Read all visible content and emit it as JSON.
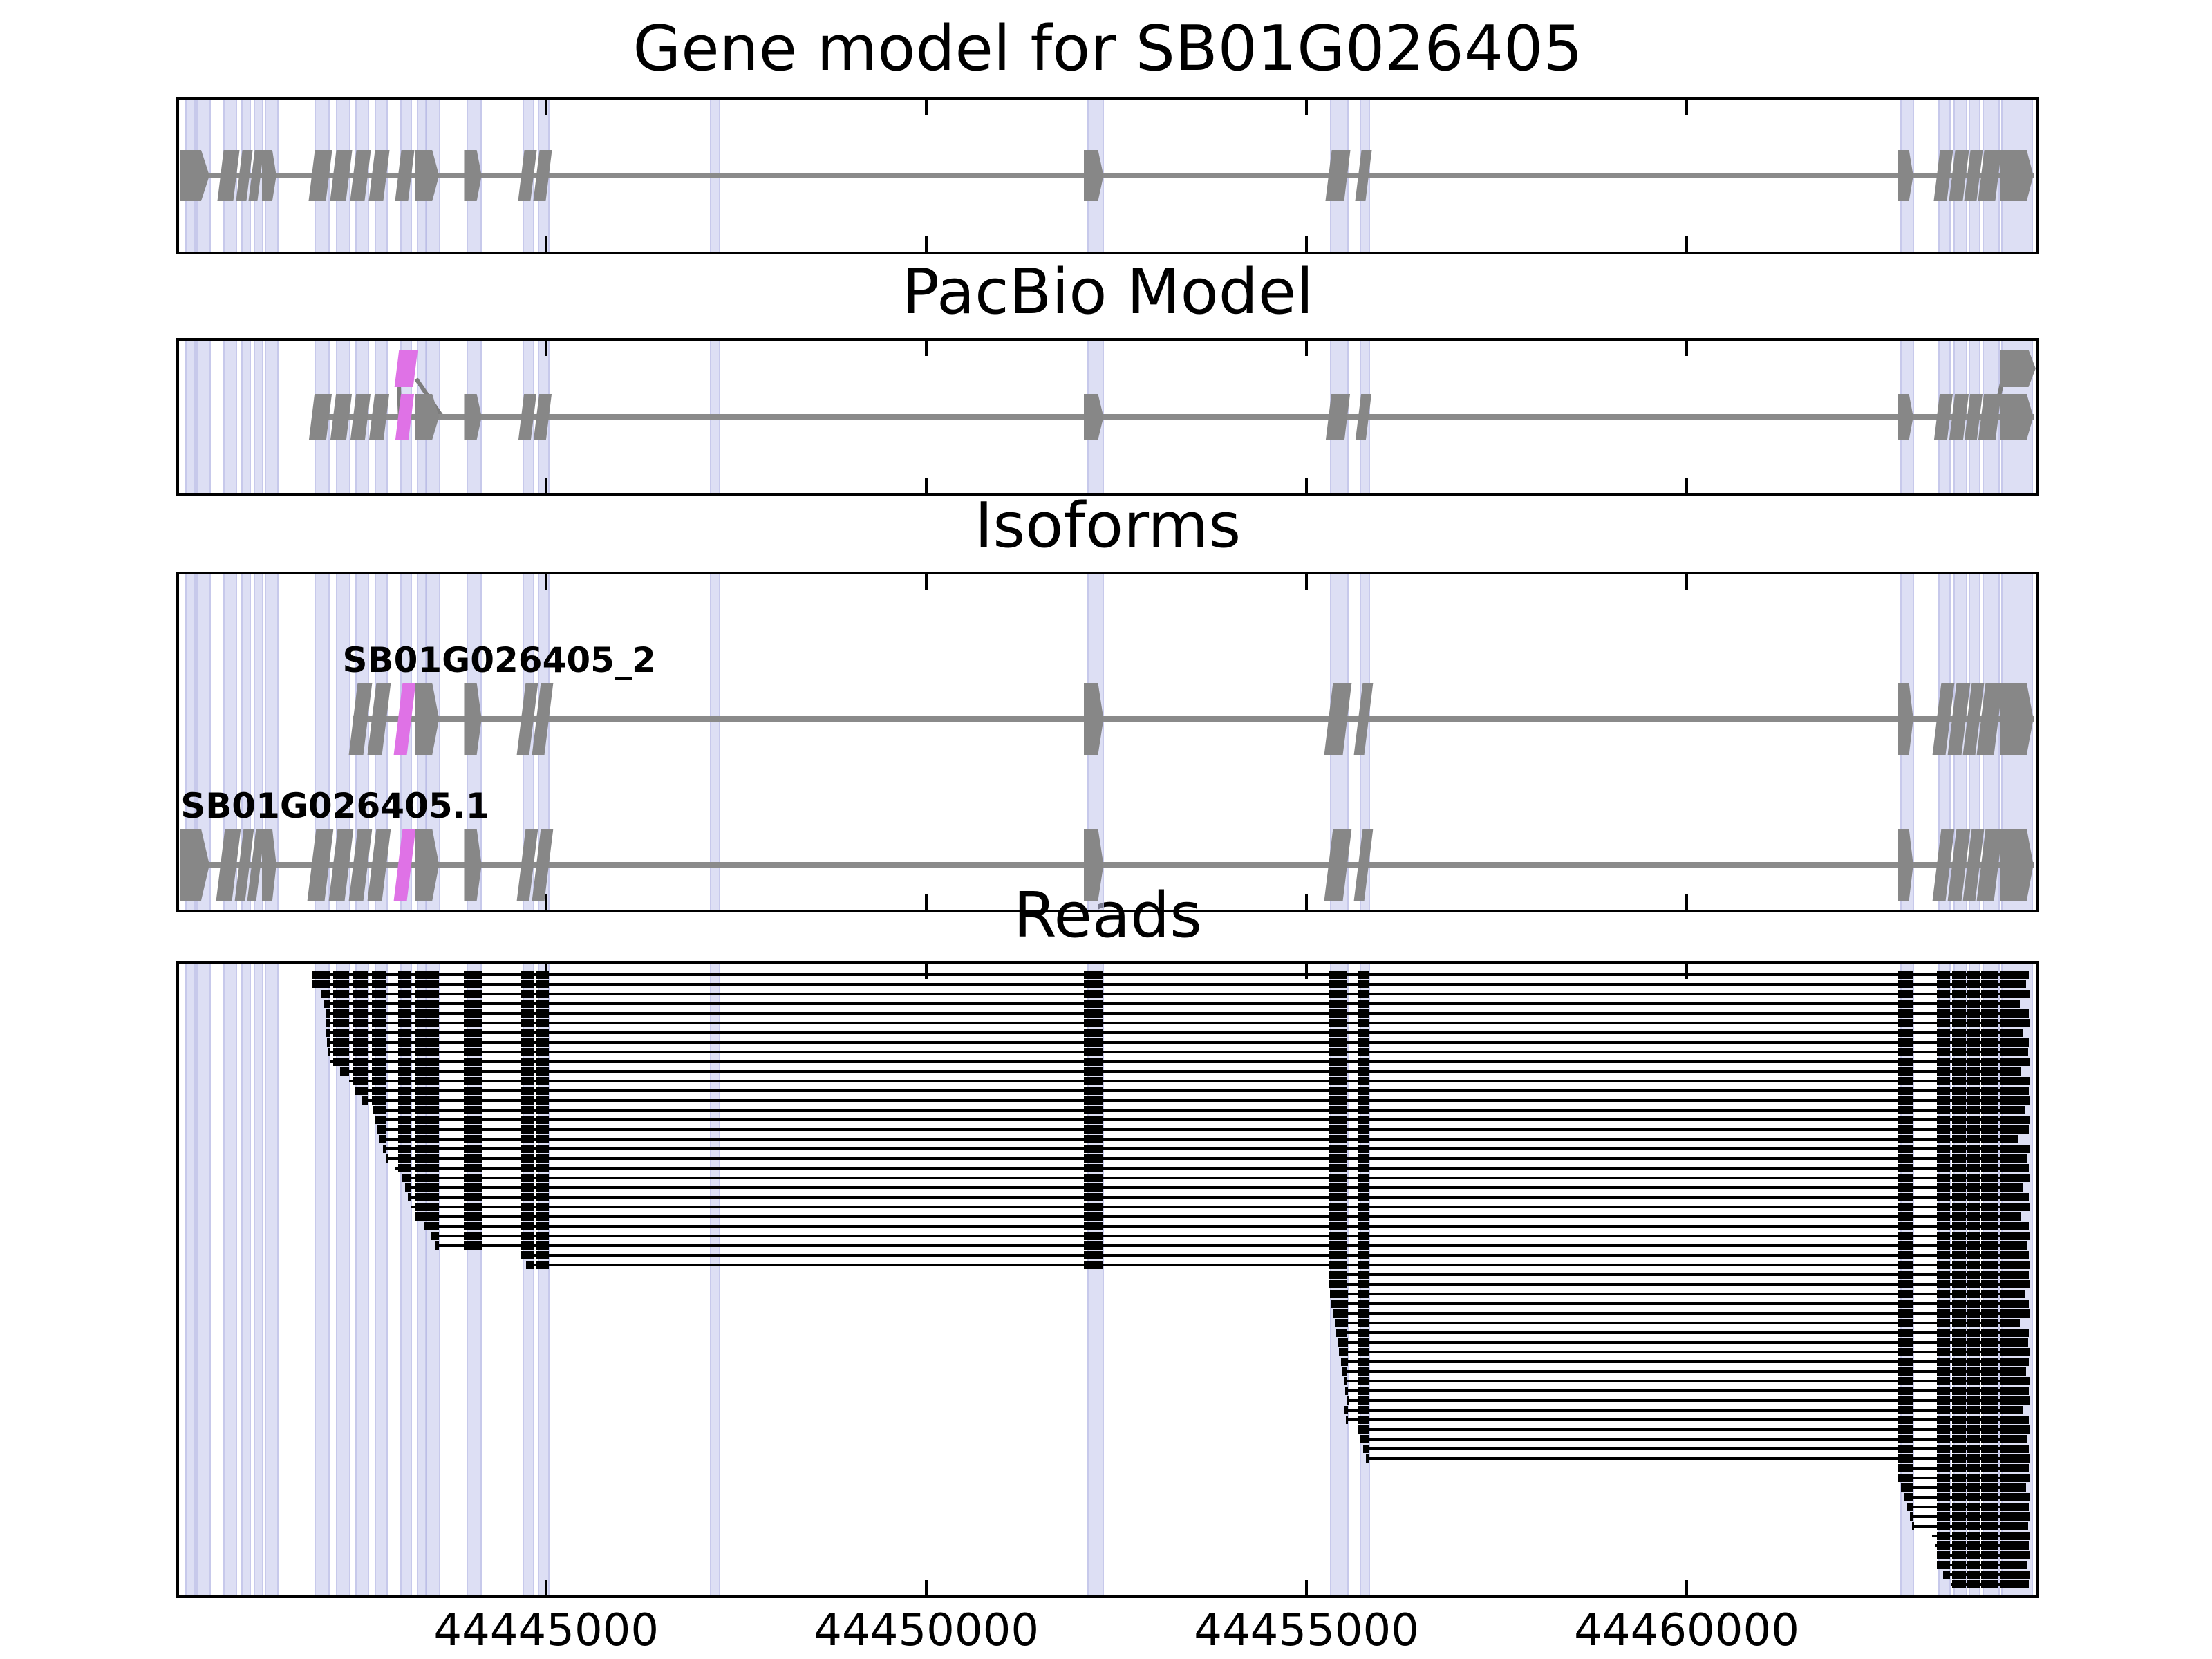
{
  "chart_data": {
    "type": "genome-browser",
    "gene_id": "SB01G026405",
    "xlim": [
      44440170,
      44464600
    ],
    "x_ticks": [
      {
        "value": 44445000,
        "label": "44445000"
      },
      {
        "value": 44450000,
        "label": "44450000"
      },
      {
        "value": 44455000,
        "label": "44455000"
      },
      {
        "value": 44460000,
        "label": "44460000"
      }
    ],
    "style_legend": {
      "": "plain exon",
      "a": "arrow exon",
      "A": "big terminal arrow exon",
      "h": "highlighted (magenta) exon"
    },
    "colors": {
      "exon_gray": "#878787",
      "intron_line": "#8a8a8a",
      "highlight_magenta": "#DF72E6",
      "read_black": "#000000",
      "stripe_fill": "rgba(199,202,236,0.60)",
      "stripe_edge": "rgba(177,180,226,0.50)",
      "panel_border": "#000000",
      "background": "#ffffff"
    },
    "panels": [
      {
        "id": "panel-gene-model",
        "title": "Gene model for SB01G026405",
        "track": "gene_model"
      },
      {
        "id": "panel-pacbio",
        "title": "PacBio Model",
        "track": "pacbio"
      },
      {
        "id": "panel-isoforms",
        "title": "Isoforms",
        "track": "isoforms"
      },
      {
        "id": "panel-reads",
        "title": "Reads",
        "track": "reads"
      }
    ],
    "stripes": [
      [
        44440250,
        44440350
      ],
      [
        44440400,
        44440550
      ],
      [
        44440750,
        44440900
      ],
      [
        44440990,
        44441080
      ],
      [
        44441150,
        44441240
      ],
      [
        44441300,
        44441440
      ],
      [
        44441950,
        44442120
      ],
      [
        44442230,
        44442390
      ],
      [
        44442490,
        44442630
      ],
      [
        44442740,
        44442880
      ],
      [
        44443080,
        44443200
      ],
      [
        44443300,
        44443390
      ],
      [
        44443420,
        44443570
      ],
      [
        44443950,
        44444120
      ],
      [
        44444690,
        44444810
      ],
      [
        44444890,
        44445010
      ],
      [
        44447150,
        44447250
      ],
      [
        44452120,
        44452300
      ],
      [
        44455310,
        44455520
      ],
      [
        44455700,
        44455800
      ],
      [
        44462810,
        44462950
      ],
      [
        44463310,
        44463440
      ],
      [
        44463510,
        44463650
      ],
      [
        44463710,
        44463830
      ],
      [
        44463890,
        44464080
      ],
      [
        44464140,
        44464520
      ]
    ],
    "tracks": {
      "gene_model": {
        "line": [
          44440180,
          44464560
        ],
        "exons": [
          [
            44440180,
            44440570,
            "a"
          ],
          [
            44440720,
            44440930,
            ""
          ],
          [
            44440965,
            44441100,
            ""
          ],
          [
            44441125,
            44441245,
            ""
          ],
          [
            44441260,
            44441450,
            "a"
          ],
          [
            44441920,
            44442150,
            ""
          ],
          [
            44442200,
            44442410,
            ""
          ],
          [
            44442460,
            44442650,
            ""
          ],
          [
            44442710,
            44442900,
            ""
          ],
          [
            44443050,
            44443220,
            ""
          ],
          [
            44443270,
            44443590,
            "a"
          ],
          [
            44443920,
            44444150,
            "a"
          ],
          [
            44444670,
            44444830,
            ""
          ],
          [
            44444870,
            44445030,
            ""
          ],
          [
            44452070,
            44452330,
            "a"
          ],
          [
            44455290,
            44455540,
            ""
          ],
          [
            44455680,
            44455820,
            ""
          ],
          [
            44462780,
            44462980,
            "a"
          ],
          [
            44463290,
            44463460,
            ""
          ],
          [
            44463490,
            44463670,
            ""
          ],
          [
            44463690,
            44463850,
            ""
          ],
          [
            44463870,
            44464100,
            ""
          ],
          [
            44464120,
            44464560,
            "A"
          ]
        ]
      },
      "pacbio": {
        "line": [
          44441920,
          44464560
        ],
        "exons": [
          [
            44441920,
            44442150,
            ""
          ],
          [
            44442200,
            44442410,
            ""
          ],
          [
            44442460,
            44442650,
            ""
          ],
          [
            44442710,
            44442900,
            ""
          ],
          [
            44443050,
            44443220,
            "h"
          ],
          [
            44443270,
            44443590,
            "a"
          ],
          [
            44443920,
            44444150,
            "a"
          ],
          [
            44444670,
            44444830,
            ""
          ],
          [
            44444870,
            44445030,
            ""
          ],
          [
            44452070,
            44452330,
            "a"
          ],
          [
            44455290,
            44455540,
            ""
          ],
          [
            44455680,
            44455820,
            ""
          ],
          [
            44462780,
            44462980,
            "a"
          ],
          [
            44463290,
            44463460,
            ""
          ],
          [
            44463490,
            44463670,
            ""
          ],
          [
            44463690,
            44463850,
            ""
          ],
          [
            44463870,
            44464100,
            ""
          ],
          [
            44464120,
            44464560,
            "A"
          ]
        ],
        "elevated": [
          {
            "s": 44443035,
            "e": 44443280,
            "style": "h"
          },
          {
            "s": 44464120,
            "e": 44464590,
            "style": "A"
          }
        ],
        "connectors": [
          [
            44443060,
            -43,
            44443075,
            -2
          ],
          [
            44443290,
            -55,
            44443620,
            -2
          ],
          [
            44464050,
            -2,
            44464140,
            -48
          ]
        ]
      }
    },
    "isoforms": [
      {
        "label": "SB01G026405_2",
        "label_x": 44442320,
        "line": [
          44442460,
          44464560
        ],
        "exons": [
          [
            44442460,
            44442650,
            ""
          ],
          [
            44442710,
            44442900,
            ""
          ],
          [
            44443050,
            44443220,
            "h"
          ],
          [
            44443270,
            44443590,
            "a"
          ],
          [
            44443920,
            44444150,
            "a"
          ],
          [
            44444670,
            44444830,
            ""
          ],
          [
            44444870,
            44445030,
            ""
          ],
          [
            44452070,
            44452330,
            "a"
          ],
          [
            44455290,
            44455540,
            ""
          ],
          [
            44455680,
            44455820,
            ""
          ],
          [
            44462780,
            44462980,
            "a"
          ],
          [
            44463290,
            44463460,
            ""
          ],
          [
            44463490,
            44463670,
            ""
          ],
          [
            44463690,
            44463850,
            ""
          ],
          [
            44463870,
            44464100,
            ""
          ],
          [
            44464120,
            44464560,
            "A"
          ]
        ]
      },
      {
        "label": "SB01G026405.1",
        "label_x": 44440190,
        "line": [
          44440180,
          44464560
        ],
        "exons": [
          [
            44440180,
            44440570,
            "a"
          ],
          [
            44440720,
            44440930,
            ""
          ],
          [
            44440965,
            44441100,
            ""
          ],
          [
            44441125,
            44441245,
            ""
          ],
          [
            44441260,
            44441450,
            "a"
          ],
          [
            44441920,
            44442150,
            ""
          ],
          [
            44442200,
            44442410,
            ""
          ],
          [
            44442460,
            44442650,
            ""
          ],
          [
            44442710,
            44442900,
            ""
          ],
          [
            44443050,
            44443220,
            "h"
          ],
          [
            44443270,
            44443590,
            "a"
          ],
          [
            44443920,
            44444150,
            "a"
          ],
          [
            44444670,
            44444830,
            ""
          ],
          [
            44444870,
            44445030,
            ""
          ],
          [
            44452070,
            44452330,
            "a"
          ],
          [
            44455290,
            44455540,
            ""
          ],
          [
            44455680,
            44455820,
            ""
          ],
          [
            44462780,
            44462980,
            "a"
          ],
          [
            44463290,
            44463460,
            ""
          ],
          [
            44463490,
            44463670,
            ""
          ],
          [
            44463690,
            44463850,
            ""
          ],
          [
            44463870,
            44464100,
            ""
          ],
          [
            44464120,
            44464560,
            "A"
          ]
        ]
      }
    ],
    "reads": {
      "exon_template": [
        [
          44441920,
          44442150
        ],
        [
          44442200,
          44442410
        ],
        [
          44442460,
          44442650
        ],
        [
          44442710,
          44442900
        ],
        [
          44443050,
          44443220
        ],
        [
          44443270,
          44443590
        ],
        [
          44443920,
          44444150
        ],
        [
          44444670,
          44444830
        ],
        [
          44444870,
          44445030
        ],
        [
          44452070,
          44452330
        ],
        [
          44455290,
          44455540
        ],
        [
          44455680,
          44455820
        ],
        [
          44462780,
          44462980
        ],
        [
          44463290,
          44463460
        ],
        [
          44463490,
          44463670
        ],
        [
          44463690,
          44463850
        ],
        [
          44463870,
          44464100
        ],
        [
          44464120,
          44464560
        ]
      ],
      "rows": [
        [
          44441920,
          44464500
        ],
        [
          44441920,
          44464460
        ],
        [
          44442040,
          44464510
        ],
        [
          44442080,
          44464380
        ],
        [
          44442110,
          44464500
        ],
        [
          44442110,
          44464520
        ],
        [
          44442110,
          44464430
        ],
        [
          44442120,
          44464500
        ],
        [
          44442130,
          44464490
        ],
        [
          44442150,
          44464510
        ],
        [
          44442290,
          44464400
        ],
        [
          44442410,
          44464510
        ],
        [
          44442490,
          44464500
        ],
        [
          44442570,
          44464520
        ],
        [
          44442720,
          44464450
        ],
        [
          44442750,
          44464510
        ],
        [
          44442780,
          44464500
        ],
        [
          44442810,
          44464360
        ],
        [
          44442850,
          44464510
        ],
        [
          44442890,
          44464480
        ],
        [
          44443010,
          44464500
        ],
        [
          44443100,
          44464510
        ],
        [
          44443140,
          44464430
        ],
        [
          44443180,
          44464500
        ],
        [
          44443220,
          44464520
        ],
        [
          44443280,
          44464390
        ],
        [
          44443390,
          44464500
        ],
        [
          44443480,
          44464510
        ],
        [
          44443540,
          44464470
        ],
        [
          44444670,
          44464500
        ],
        [
          44444730,
          44464510
        ],
        [
          44455290,
          44464500
        ],
        [
          44455290,
          44464520
        ],
        [
          44455310,
          44464450
        ],
        [
          44455330,
          44464500
        ],
        [
          44455350,
          44464510
        ],
        [
          44455370,
          44464380
        ],
        [
          44455390,
          44464500
        ],
        [
          44455410,
          44464490
        ],
        [
          44455430,
          44464510
        ],
        [
          44455450,
          44464500
        ],
        [
          44455470,
          44464460
        ],
        [
          44455490,
          44464510
        ],
        [
          44455510,
          44464500
        ],
        [
          44455530,
          44464520
        ],
        [
          44455500,
          44464430
        ],
        [
          44455520,
          44464500
        ],
        [
          44455683,
          44464510
        ],
        [
          44455710,
          44464480
        ],
        [
          44455746,
          44464500
        ],
        [
          44455780,
          44464510
        ],
        [
          44462780,
          44464500
        ],
        [
          44462780,
          44464520
        ],
        [
          44462820,
          44464460
        ],
        [
          44462860,
          44464510
        ],
        [
          44462900,
          44464500
        ],
        [
          44462940,
          44464520
        ],
        [
          44462960,
          44464490
        ],
        [
          44463230,
          44464510
        ],
        [
          44463260,
          44464500
        ],
        [
          44463290,
          44464520
        ],
        [
          44463290,
          44464470
        ],
        [
          44463370,
          44464510
        ],
        [
          44463470,
          44464500
        ]
      ]
    }
  }
}
